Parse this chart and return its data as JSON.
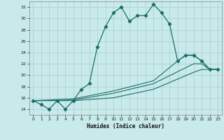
{
  "title": "",
  "xlabel": "Humidex (Indice chaleur)",
  "bg_color": "#c8eaea",
  "line_color": "#1a6e6a",
  "grid_color": "#aacccc",
  "xlim": [
    -0.5,
    23.5
  ],
  "ylim": [
    13,
    33
  ],
  "yticks": [
    14,
    16,
    18,
    20,
    22,
    24,
    26,
    28,
    30,
    32
  ],
  "xticks": [
    0,
    1,
    2,
    3,
    4,
    5,
    6,
    7,
    8,
    9,
    10,
    11,
    12,
    13,
    14,
    15,
    16,
    17,
    18,
    19,
    20,
    21,
    22,
    23
  ],
  "series1_x": [
    0,
    1,
    2,
    3,
    4,
    5,
    6,
    7,
    8,
    9,
    10,
    11,
    12,
    13,
    14,
    15,
    16,
    17,
    18,
    19,
    20,
    21,
    22,
    23
  ],
  "series1_y": [
    15.5,
    14.8,
    14.0,
    15.5,
    14.0,
    15.5,
    17.5,
    18.5,
    25.0,
    28.5,
    31.0,
    32.0,
    29.5,
    30.5,
    30.5,
    32.5,
    31.0,
    29.0,
    22.5,
    23.5,
    23.5,
    22.5,
    21.0,
    21.0
  ],
  "series2_x": [
    0,
    5,
    10,
    15,
    18,
    19,
    20,
    21,
    22,
    23
  ],
  "series2_y": [
    15.5,
    15.8,
    17.2,
    19.0,
    22.5,
    23.5,
    23.5,
    22.5,
    21.0,
    21.0
  ],
  "series3_x": [
    0,
    5,
    10,
    15,
    20,
    21,
    22,
    23
  ],
  "series3_y": [
    15.5,
    15.6,
    16.8,
    18.5,
    22.0,
    22.0,
    21.0,
    21.0
  ],
  "series4_x": [
    0,
    5,
    10,
    15,
    20,
    21,
    22,
    23
  ],
  "series4_y": [
    15.5,
    15.5,
    16.0,
    17.5,
    20.5,
    21.0,
    21.0,
    21.0
  ]
}
